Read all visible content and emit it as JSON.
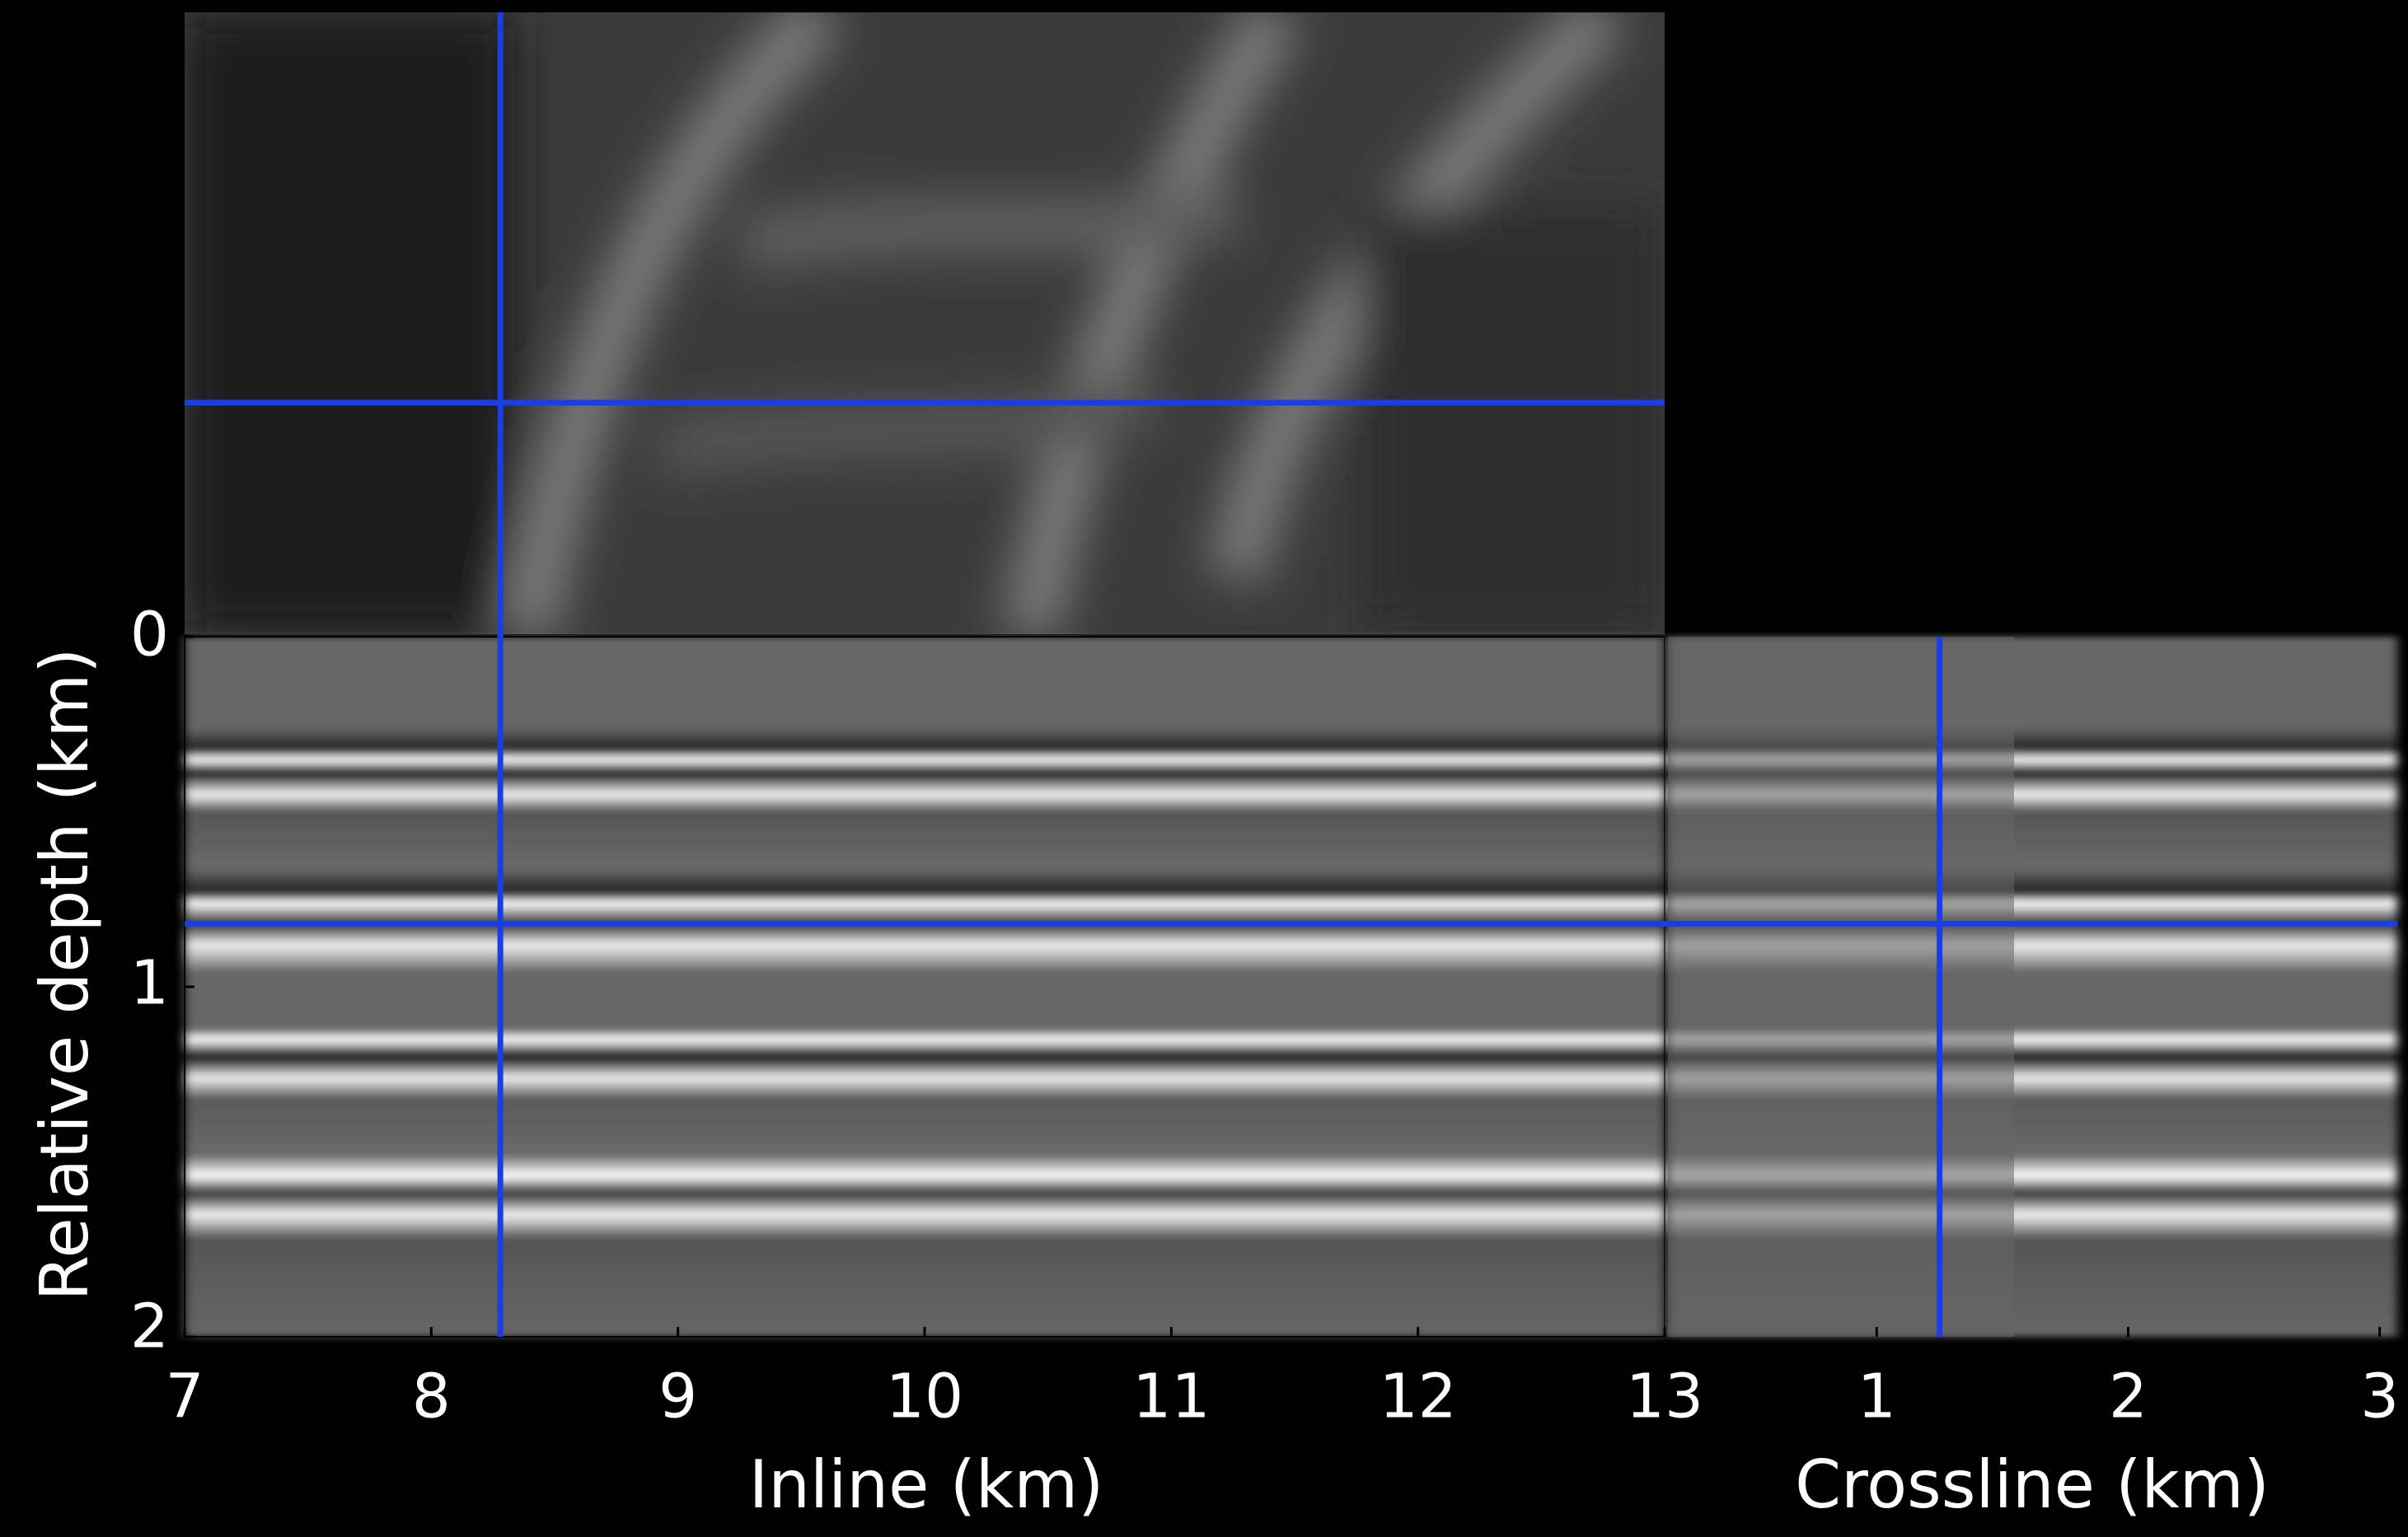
{
  "chart_data": {
    "type": "seismic-slices",
    "xlabel": "Inline (km)",
    "x2label": "Crossline (km)",
    "ylabel": "Relative depth (km)",
    "xlim": [
      7,
      13
    ],
    "xticks": [
      7,
      8,
      9,
      10,
      11,
      12,
      13
    ],
    "x2lim": [
      0.17,
      3.07
    ],
    "x2ticks": [
      1,
      2,
      3
    ],
    "ylim": [
      0,
      2
    ],
    "yticks": [
      0,
      1,
      2
    ],
    "yreversed": true,
    "crosshair": {
      "inline": 8.28,
      "crossline": 1.25,
      "depth": 0.82,
      "color": "#1a3de6"
    }
  }
}
